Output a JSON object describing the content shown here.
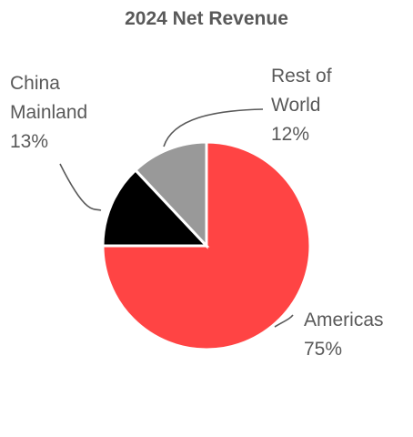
{
  "chart_data": {
    "type": "pie",
    "title": "2024 Net Revenue",
    "slices": [
      {
        "label": "Americas",
        "value": 75,
        "value_label": "75%",
        "color": "#ff4444"
      },
      {
        "label": "China Mainland",
        "value": 13,
        "value_label": "13%",
        "color": "#000000"
      },
      {
        "label": "Rest of World",
        "value": 12,
        "value_label": "12%",
        "color": "#999999"
      }
    ]
  },
  "chart_labels": {
    "americas": [
      "Americas"
    ],
    "china": [
      "China",
      "Mainland"
    ],
    "rest": [
      "Rest of",
      "World"
    ]
  }
}
